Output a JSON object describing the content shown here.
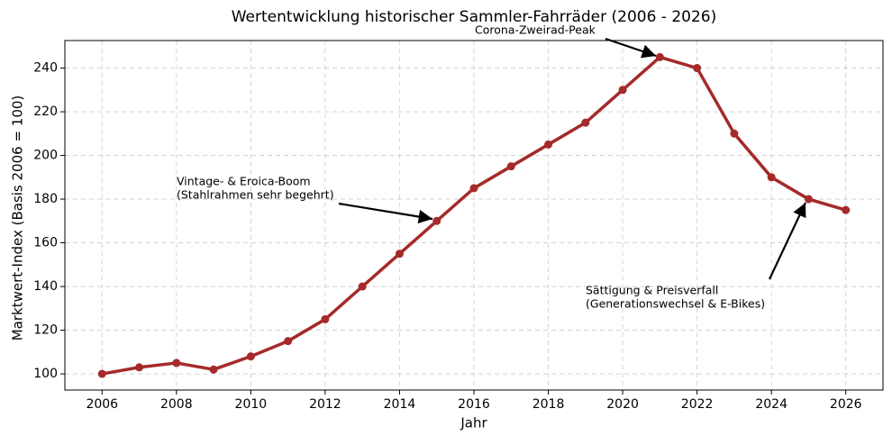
{
  "chart_data": {
    "type": "line",
    "title": "Wertentwicklung historischer Sammler-Fahrräder (2006 - 2026)",
    "xlabel": "Jahr",
    "ylabel": "Marktwert-Index (Basis 2006 = 100)",
    "x": [
      2006,
      2007,
      2008,
      2009,
      2010,
      2011,
      2012,
      2013,
      2014,
      2015,
      2016,
      2017,
      2018,
      2019,
      2020,
      2021,
      2022,
      2023,
      2024,
      2025,
      2026
    ],
    "values": [
      100,
      103,
      105,
      102,
      108,
      115,
      125,
      140,
      155,
      170,
      185,
      195,
      205,
      215,
      230,
      245,
      240,
      210,
      190,
      180,
      175
    ],
    "color": "#a52a2a",
    "xlim": [
      2005,
      2027
    ],
    "ylim": [
      92.6,
      252.6
    ],
    "xticks": [
      2006,
      2008,
      2010,
      2012,
      2014,
      2016,
      2018,
      2020,
      2022,
      2024,
      2026
    ],
    "yticks": [
      100,
      120,
      140,
      160,
      180,
      200,
      220,
      240
    ],
    "grid": true,
    "annotations": [
      {
        "lines": [
          "Corona-Zweirad-Peak"
        ]
      },
      {
        "lines": [
          "Vintage- & Eroica-Boom",
          "(Stahlrahmen sehr begehrt)"
        ]
      },
      {
        "lines": [
          "Sättigung & Preisverfall",
          "(Generationswechsel & E-Bikes)"
        ]
      }
    ]
  }
}
